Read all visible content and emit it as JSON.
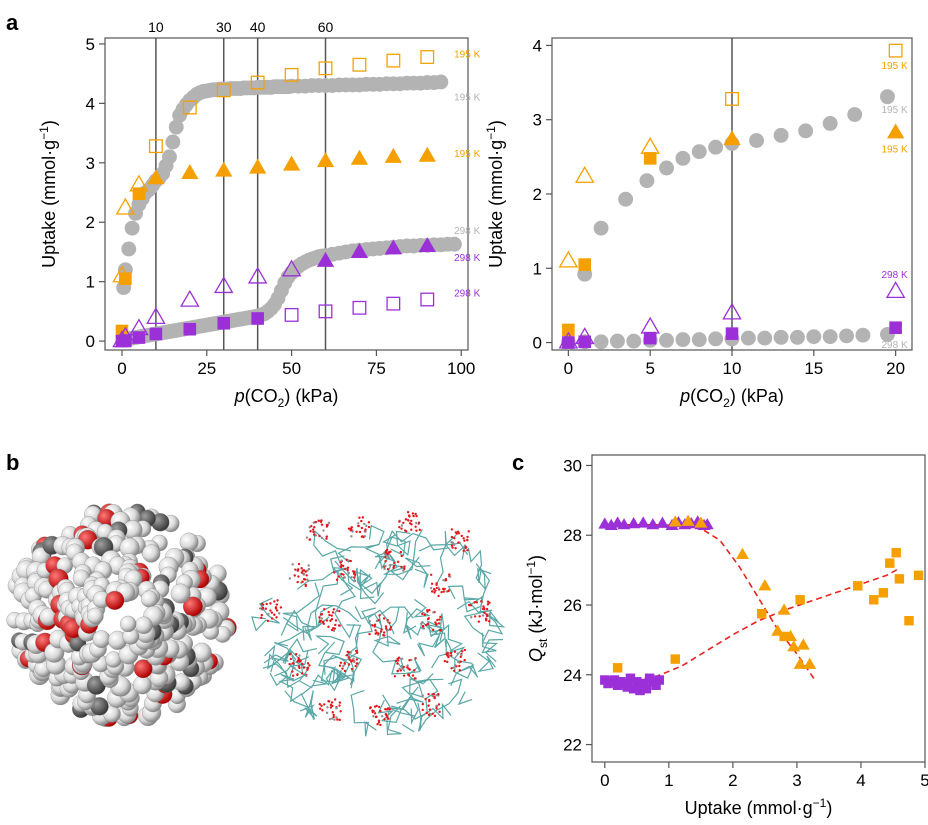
{
  "panels": {
    "a": "a",
    "b": "b",
    "c": "c"
  },
  "colors": {
    "orange": "#f5a000",
    "purple": "#9b30d9",
    "grey": "#b3b3b3",
    "red_dash": "#e8231c",
    "teal": "#5aa7a7",
    "atom_red": "#e8161a",
    "atom_grey": "#6d6d6d",
    "atom_light": "#d9d9d9"
  },
  "chart_data": [
    {
      "id": "a-left",
      "type": "scatter",
      "xlabel": "p(CO2) (kPa)",
      "ylabel": "Uptake (mmol·g−1)",
      "xlim": [
        -5,
        102
      ],
      "ylim": [
        -0.15,
        5.1
      ],
      "xticks": [
        0,
        25,
        50,
        75,
        100
      ],
      "yticks": [
        0,
        1,
        2,
        3,
        4,
        5
      ],
      "vlines": [
        10,
        30,
        40,
        60
      ],
      "series_labels": [
        {
          "text": "195 K",
          "x": 95,
          "y": 4.82,
          "color": "orange"
        },
        {
          "text": "195 K",
          "x": 95,
          "y": 4.1,
          "color": "grey"
        },
        {
          "text": "195 K",
          "x": 95,
          "y": 3.15,
          "color": "orange"
        },
        {
          "text": "298 K",
          "x": 95,
          "y": 1.85,
          "color": "grey"
        },
        {
          "text": "298 K",
          "x": 95,
          "y": 1.4,
          "color": "purple"
        },
        {
          "text": "298 K",
          "x": 95,
          "y": 0.8,
          "color": "purple"
        }
      ],
      "series": [
        {
          "marker": "circle",
          "color": "grey",
          "fill": true,
          "x": [
            0.5,
            1,
            2,
            3,
            4,
            5,
            6,
            7,
            8,
            9,
            10,
            11,
            12,
            13,
            14,
            15,
            16,
            17,
            18,
            19,
            20,
            21,
            22,
            23,
            24,
            25,
            26,
            27,
            28,
            29,
            30,
            31,
            32,
            33,
            34,
            35,
            36,
            37,
            38,
            39,
            40,
            41,
            42,
            43,
            44,
            45,
            46,
            47,
            48,
            49,
            50,
            52,
            54,
            56,
            58,
            60,
            62,
            64,
            66,
            68,
            70,
            72,
            74,
            76,
            78,
            80,
            82,
            84,
            86,
            88,
            90,
            92,
            94
          ],
          "y": [
            0.9,
            1.2,
            1.55,
            1.9,
            2.15,
            2.3,
            2.4,
            2.5,
            2.55,
            2.62,
            2.7,
            2.75,
            2.82,
            2.95,
            3.1,
            3.35,
            3.6,
            3.8,
            3.9,
            3.98,
            4.05,
            4.1,
            4.15,
            4.18,
            4.2,
            4.21,
            4.22,
            4.23,
            4.23,
            4.24,
            4.24,
            4.24,
            4.25,
            4.25,
            4.25,
            4.25,
            4.26,
            4.26,
            4.26,
            4.26,
            4.27,
            4.27,
            4.27,
            4.27,
            4.27,
            4.28,
            4.28,
            4.28,
            4.28,
            4.28,
            4.29,
            4.29,
            4.29,
            4.3,
            4.3,
            4.3,
            4.3,
            4.31,
            4.31,
            4.31,
            4.31,
            4.32,
            4.32,
            4.32,
            4.33,
            4.33,
            4.33,
            4.34,
            4.34,
            4.34,
            4.35,
            4.35,
            4.36
          ]
        },
        {
          "marker": "circle",
          "color": "grey",
          "fill": true,
          "x": [
            0.5,
            1,
            2,
            3,
            4,
            5,
            6,
            7,
            8,
            9,
            10,
            11,
            12,
            13,
            14,
            15,
            16,
            17,
            18,
            19,
            20,
            21,
            22,
            23,
            24,
            25,
            26,
            27,
            28,
            29,
            30,
            31,
            32,
            33,
            34,
            35,
            36,
            37,
            38,
            39,
            40,
            41,
            42,
            43,
            44,
            45,
            46,
            47,
            48,
            49,
            50,
            51,
            52,
            53,
            54,
            55,
            56,
            57,
            58,
            59,
            60,
            62,
            64,
            66,
            68,
            70,
            72,
            74,
            76,
            78,
            80,
            82,
            84,
            86,
            88,
            90,
            92,
            94,
            96,
            98
          ],
          "y": [
            0.02,
            0.03,
            0.04,
            0.05,
            0.06,
            0.07,
            0.08,
            0.09,
            0.1,
            0.11,
            0.12,
            0.13,
            0.14,
            0.15,
            0.16,
            0.17,
            0.18,
            0.19,
            0.2,
            0.21,
            0.22,
            0.23,
            0.24,
            0.25,
            0.26,
            0.27,
            0.28,
            0.29,
            0.3,
            0.31,
            0.32,
            0.33,
            0.34,
            0.35,
            0.36,
            0.37,
            0.38,
            0.39,
            0.4,
            0.41,
            0.42,
            0.44,
            0.46,
            0.5,
            0.55,
            0.62,
            0.72,
            0.85,
            0.98,
            1.08,
            1.15,
            1.21,
            1.26,
            1.3,
            1.33,
            1.36,
            1.38,
            1.4,
            1.42,
            1.43,
            1.44,
            1.46,
            1.48,
            1.5,
            1.52,
            1.53,
            1.54,
            1.55,
            1.56,
            1.57,
            1.58,
            1.59,
            1.6,
            1.6,
            1.61,
            1.61,
            1.62,
            1.62,
            1.63,
            1.63
          ]
        },
        {
          "marker": "square",
          "color": "orange",
          "fill": false,
          "x": [
            10,
            20,
            30,
            40,
            50,
            60,
            70,
            80,
            90
          ],
          "y": [
            3.28,
            3.93,
            4.22,
            4.35,
            4.48,
            4.59,
            4.65,
            4.72,
            4.78
          ]
        },
        {
          "marker": "square",
          "color": "orange",
          "fill": true,
          "x": [
            0,
            1,
            5
          ],
          "y": [
            0.17,
            1.05,
            2.48
          ]
        },
        {
          "marker": "triangle",
          "color": "orange",
          "fill": false,
          "x": [
            0,
            1,
            5
          ],
          "y": [
            1.1,
            2.24,
            2.63
          ]
        },
        {
          "marker": "triangle",
          "color": "orange",
          "fill": true,
          "x": [
            10,
            20,
            30,
            40,
            50,
            60,
            70,
            80,
            90
          ],
          "y": [
            2.74,
            2.83,
            2.87,
            2.92,
            2.97,
            3.03,
            3.07,
            3.1,
            3.12
          ]
        },
        {
          "marker": "triangle",
          "color": "purple",
          "fill": false,
          "x": [
            0,
            1,
            5,
            10,
            20,
            30,
            40,
            50
          ],
          "y": [
            0.01,
            0.07,
            0.21,
            0.4,
            0.69,
            0.92,
            1.08,
            1.2
          ]
        },
        {
          "marker": "triangle",
          "color": "purple",
          "fill": true,
          "x": [
            60,
            70,
            80,
            90
          ],
          "y": [
            1.35,
            1.5,
            1.56,
            1.6
          ]
        },
        {
          "marker": "square",
          "color": "purple",
          "fill": true,
          "x": [
            0,
            1,
            5,
            10,
            20,
            30,
            40
          ],
          "y": [
            0.0,
            0.01,
            0.06,
            0.12,
            0.2,
            0.3,
            0.38
          ]
        },
        {
          "marker": "square",
          "color": "purple",
          "fill": false,
          "x": [
            50,
            60,
            70,
            80,
            90
          ],
          "y": [
            0.44,
            0.5,
            0.56,
            0.63,
            0.7
          ]
        }
      ]
    },
    {
      "id": "a-right",
      "type": "scatter",
      "xlabel": "p(CO2) (kPa)",
      "ylabel": "Uptake (mmol·g−1)",
      "xlim": [
        -1,
        21
      ],
      "ylim": [
        -0.1,
        4.1
      ],
      "xticks": [
        0,
        5,
        10,
        15,
        20
      ],
      "yticks": [
        0,
        1,
        2,
        3,
        4
      ],
      "vlines": [
        10
      ],
      "series_labels": [
        {
          "text": "195 K",
          "x": 20,
          "y": 3.72,
          "color": "orange"
        },
        {
          "text": "195 K",
          "x": 20,
          "y": 3.13,
          "color": "grey"
        },
        {
          "text": "195 K",
          "x": 20,
          "y": 2.6,
          "color": "orange"
        },
        {
          "text": "298 K",
          "x": 20,
          "y": 0.91,
          "color": "purple"
        },
        {
          "text": "298 K",
          "x": 20,
          "y": -0.03,
          "color": "grey"
        }
      ],
      "series": [
        {
          "marker": "circle",
          "color": "grey",
          "fill": true,
          "x": [
            1,
            2,
            3.5,
            4.8,
            6,
            7,
            8,
            9,
            10,
            11.5,
            13,
            14.5,
            16,
            17.5,
            19.5
          ],
          "y": [
            0.92,
            1.54,
            1.93,
            2.18,
            2.35,
            2.48,
            2.57,
            2.63,
            2.68,
            2.72,
            2.79,
            2.85,
            2.95,
            3.07,
            3.31
          ]
        },
        {
          "marker": "circle",
          "color": "grey",
          "fill": true,
          "x": [
            0,
            1,
            2,
            3,
            4,
            5,
            6,
            7,
            8,
            9,
            10,
            11,
            12,
            13,
            14,
            15,
            16,
            17,
            18,
            19.5
          ],
          "y": [
            0.0,
            0.01,
            0.01,
            0.02,
            0.02,
            0.03,
            0.03,
            0.04,
            0.04,
            0.05,
            0.05,
            0.06,
            0.06,
            0.07,
            0.07,
            0.08,
            0.08,
            0.09,
            0.1,
            0.11
          ]
        },
        {
          "marker": "square",
          "color": "orange",
          "fill": false,
          "x": [
            10,
            20
          ],
          "y": [
            3.28,
            3.93
          ]
        },
        {
          "marker": "square",
          "color": "orange",
          "fill": true,
          "x": [
            0,
            1,
            5
          ],
          "y": [
            0.17,
            1.05,
            2.48
          ]
        },
        {
          "marker": "triangle",
          "color": "orange",
          "fill": false,
          "x": [
            0,
            1,
            5
          ],
          "y": [
            1.1,
            2.24,
            2.63
          ]
        },
        {
          "marker": "triangle",
          "color": "orange",
          "fill": true,
          "x": [
            10,
            20
          ],
          "y": [
            2.74,
            2.83
          ]
        },
        {
          "marker": "triangle",
          "color": "purple",
          "fill": false,
          "x": [
            0,
            1,
            5,
            10,
            20
          ],
          "y": [
            0.01,
            0.07,
            0.21,
            0.4,
            0.69
          ]
        },
        {
          "marker": "square",
          "color": "purple",
          "fill": true,
          "x": [
            0,
            1,
            5,
            10,
            20
          ],
          "y": [
            0.0,
            0.01,
            0.06,
            0.12,
            0.2
          ]
        }
      ]
    },
    {
      "id": "c",
      "type": "scatter",
      "xlabel": "Uptake (mmol·g−1)",
      "ylabel": "Qst (kJ·mol−1)",
      "xlim": [
        -0.2,
        5.0
      ],
      "ylim": [
        21.5,
        30.3
      ],
      "xticks": [
        0,
        1,
        2,
        3,
        4,
        5
      ],
      "yticks": [
        22,
        24,
        26,
        28,
        30
      ],
      "fit_lines": [
        {
          "color": "red_dash",
          "x": [
            0,
            0.4,
            0.8,
            1.2,
            1.5,
            1.8,
            2.1,
            2.4,
            2.7,
            3.0,
            3.3
          ],
          "y": [
            28.3,
            28.3,
            28.3,
            28.28,
            28.2,
            27.85,
            27.1,
            26.2,
            25.3,
            24.6,
            23.8
          ]
        },
        {
          "color": "red_dash",
          "x": [
            0,
            0.4,
            0.8,
            1.2,
            1.6,
            2.0,
            2.4,
            2.8,
            3.2,
            3.6,
            4.0,
            4.4,
            4.6
          ],
          "y": [
            23.8,
            23.85,
            23.95,
            24.25,
            24.7,
            25.15,
            25.55,
            25.85,
            26.1,
            26.35,
            26.6,
            26.85,
            27.05
          ]
        }
      ],
      "series": [
        {
          "marker": "triangle",
          "color": "purple",
          "fill": true,
          "x": [
            0.0,
            0.1,
            0.2,
            0.3,
            0.45,
            0.6,
            0.75,
            0.9,
            1.05,
            1.15,
            1.25,
            1.35,
            1.45,
            1.5,
            1.55,
            1.6
          ],
          "y": [
            28.32,
            28.28,
            28.35,
            28.3,
            28.33,
            28.35,
            28.3,
            28.34,
            28.28,
            28.36,
            28.3,
            28.33,
            28.38,
            28.3,
            28.28,
            28.3
          ]
        },
        {
          "marker": "triangle",
          "color": "orange",
          "fill": true,
          "x": [
            1.1,
            1.3,
            1.5,
            2.15,
            2.5,
            2.7,
            2.8,
            2.9,
            2.95,
            3.05,
            3.1,
            3.2
          ],
          "y": [
            28.38,
            28.4,
            28.35,
            27.45,
            26.55,
            25.25,
            25.85,
            25.1,
            24.8,
            24.3,
            24.85,
            24.3
          ]
        },
        {
          "marker": "square",
          "color": "purple",
          "fill": true,
          "x": [
            0.0,
            0.05,
            0.1,
            0.15,
            0.2,
            0.25,
            0.3,
            0.35,
            0.4,
            0.45,
            0.5,
            0.55,
            0.6,
            0.65,
            0.7,
            0.75,
            0.8,
            0.85
          ],
          "y": [
            23.85,
            23.75,
            23.8,
            23.85,
            23.7,
            23.8,
            23.75,
            23.65,
            23.9,
            23.6,
            23.8,
            23.55,
            23.75,
            23.6,
            23.9,
            23.8,
            23.7,
            23.85
          ]
        },
        {
          "marker": "square",
          "color": "orange",
          "fill": true,
          "x": [
            0.2,
            1.1,
            2.45,
            2.8,
            3.05,
            3.95,
            4.2,
            4.35,
            4.45,
            4.55,
            4.6,
            4.75,
            4.9
          ],
          "y": [
            24.2,
            24.45,
            25.75,
            25.1,
            26.15,
            26.55,
            26.15,
            26.35,
            27.2,
            27.5,
            26.75,
            25.55,
            26.85
          ]
        }
      ]
    }
  ],
  "panel_b": {
    "sphere_model": "space-filling CO2 cluster",
    "framework": "stick framework with CO2 density"
  }
}
